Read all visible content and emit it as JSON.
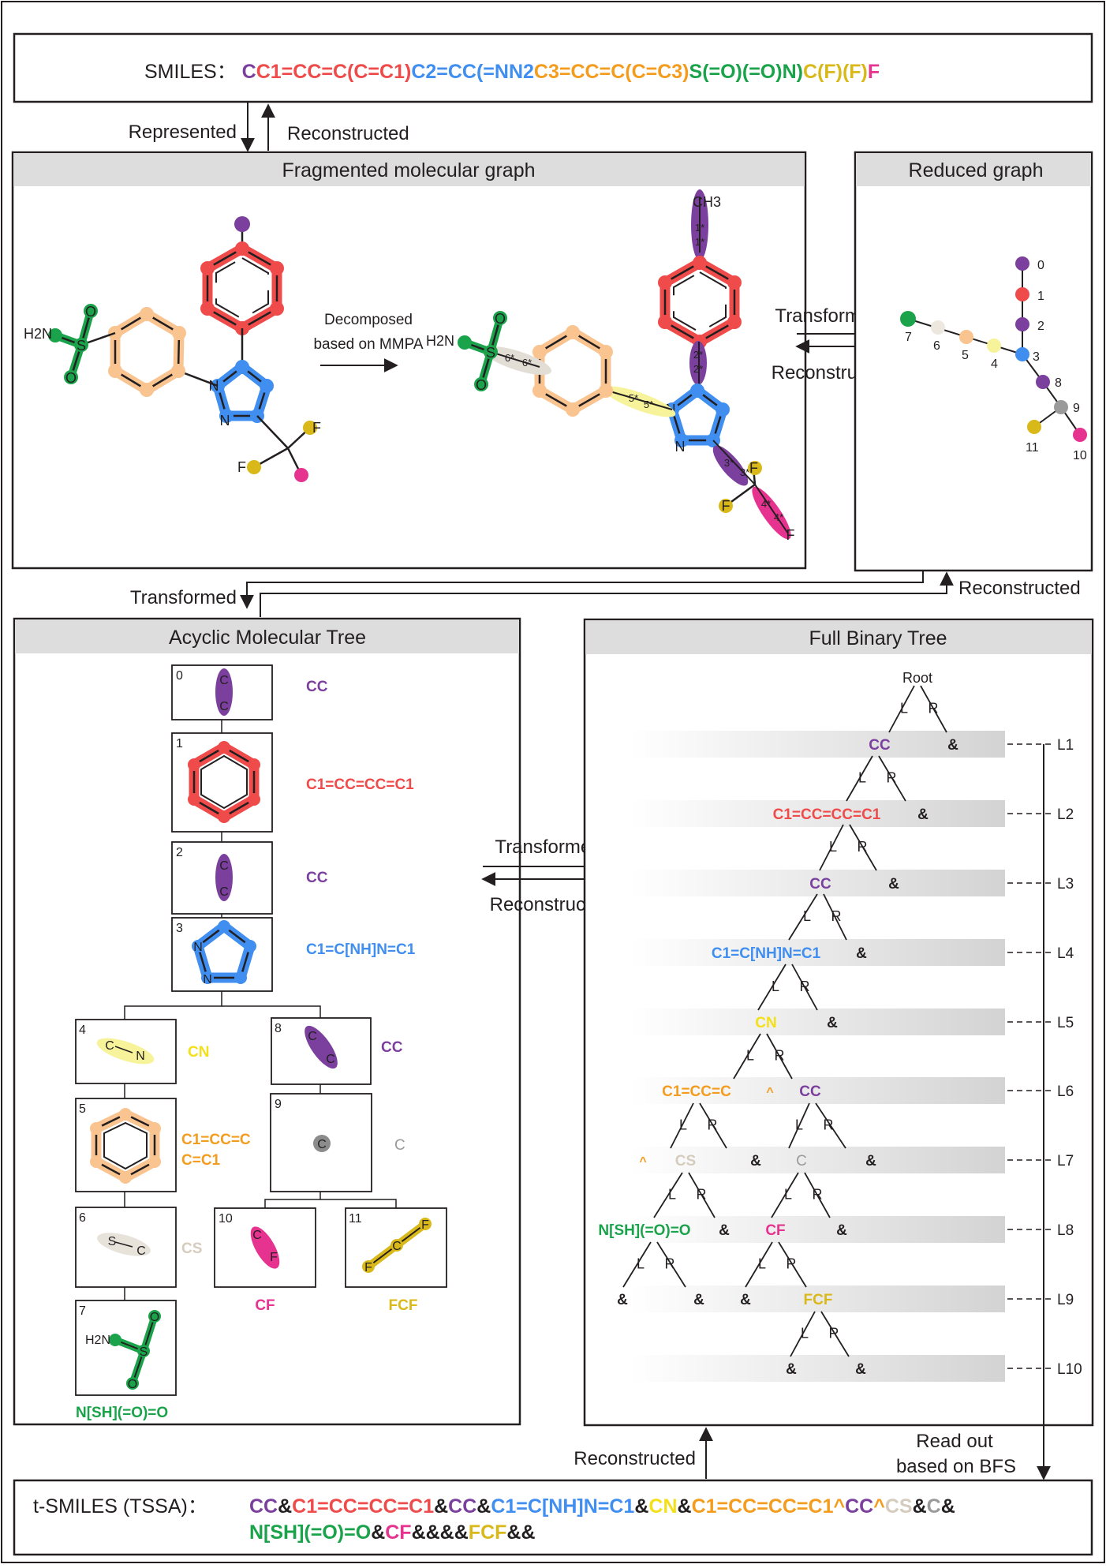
{
  "smiles": {
    "label": "SMILES：",
    "parts": [
      {
        "text": "C",
        "color": "#7b3f9e"
      },
      {
        "text": "C1=CC=C(C=C1)",
        "color": "#ef4b4b"
      },
      {
        "text": "C2=CC(=NN2",
        "color": "#3f8ef0"
      },
      {
        "text": "C3=CC=C(C=C3)",
        "color": "#f39c1e"
      },
      {
        "text": "S(=O)(=O)N)",
        "color": "#1aa34a"
      },
      {
        "text": "C(F)(F)",
        "color": "#d9b91a"
      },
      {
        "text": "F",
        "color": "#e6338f"
      }
    ]
  },
  "arrows": {
    "represented": "Represented",
    "reconstructed": "Reconstructed",
    "transformed": "Transformed",
    "read_out_line1": "Read out",
    "read_out_line2": "based on BFS"
  },
  "panels": {
    "fragmented": "Fragmented molecular graph",
    "reduced": "Reduced graph",
    "acyclic": "Acyclic Molecular Tree",
    "binary": "Full Binary Tree"
  },
  "decomposed": {
    "line1": "Decomposed",
    "line2": "based on MMPA"
  },
  "atoms": {
    "h2n": "H2N",
    "s": "S",
    "o": "O",
    "n": "N",
    "f": "F",
    "c": "C",
    "ch3": "CH3",
    "cuts": [
      "1*",
      "1*",
      "2*",
      "2*",
      "3*",
      "3*",
      "4*",
      "4*",
      "5*",
      "5*",
      "6*",
      "6*"
    ]
  },
  "reduced_nodes": [
    "0",
    "1",
    "2",
    "3",
    "4",
    "5",
    "6",
    "7",
    "8",
    "9",
    "10",
    "11"
  ],
  "tree_nodes": [
    {
      "id": "0",
      "label": "CC",
      "color": "#7b3f9e"
    },
    {
      "id": "1",
      "label": "C1=CC=CC=C1",
      "color": "#ef4b4b"
    },
    {
      "id": "2",
      "label": "CC",
      "color": "#7b3f9e"
    },
    {
      "id": "3",
      "label": "C1=C[NH]N=C1",
      "color": "#3f8ef0"
    },
    {
      "id": "4",
      "label": "CN",
      "color": "#f3e01a"
    },
    {
      "id": "5",
      "label": "C1=CC=C",
      "label2": "C=C1",
      "color": "#f39c1e"
    },
    {
      "id": "6",
      "label": "CS",
      "color": "#d6ccbe"
    },
    {
      "id": "7",
      "label": "N[SH](=O)=O",
      "color": "#1aa34a"
    },
    {
      "id": "8",
      "label": "CC",
      "color": "#7b3f9e"
    },
    {
      "id": "9",
      "label": "C",
      "color": "#9a9a9a"
    },
    {
      "id": "10",
      "label": "CF",
      "color": "#e6338f"
    },
    {
      "id": "11",
      "label": "FCF",
      "color": "#d9b91a"
    }
  ],
  "binary_tree": {
    "root": "Root",
    "left": "L",
    "right": "R",
    "amp": "&",
    "caret": "^",
    "levels": [
      "L1",
      "L2",
      "L3",
      "L4",
      "L5",
      "L6",
      "L7",
      "L8",
      "L9",
      "L10"
    ]
  },
  "tsmiles": {
    "label": "t-SMILES (TSSA)：",
    "line1": [
      {
        "text": "CC",
        "color": "#7b3f9e"
      },
      {
        "text": "&",
        "color": "#231f20"
      },
      {
        "text": "C1=CC=CC=C1",
        "color": "#ef4b4b"
      },
      {
        "text": "&",
        "color": "#231f20"
      },
      {
        "text": "CC",
        "color": "#7b3f9e"
      },
      {
        "text": "&",
        "color": "#231f20"
      },
      {
        "text": "C1=C[NH]N=C1",
        "color": "#3f8ef0"
      },
      {
        "text": "&",
        "color": "#231f20"
      },
      {
        "text": "CN",
        "color": "#f3e01a"
      },
      {
        "text": "&",
        "color": "#231f20"
      },
      {
        "text": "C1=CC=CC=C1",
        "color": "#f39c1e"
      },
      {
        "text": "^",
        "color": "#f39c1e"
      },
      {
        "text": "CC",
        "color": "#7b3f9e"
      },
      {
        "text": "^",
        "color": "#f39c1e"
      },
      {
        "text": "CS",
        "color": "#d6ccbe"
      },
      {
        "text": "&",
        "color": "#231f20"
      },
      {
        "text": "C",
        "color": "#9a9a9a"
      },
      {
        "text": "&",
        "color": "#231f20"
      }
    ],
    "line2": [
      {
        "text": "N[SH](=O)=O",
        "color": "#1aa34a"
      },
      {
        "text": "&",
        "color": "#231f20"
      },
      {
        "text": "CF",
        "color": "#e6338f"
      },
      {
        "text": "&&&&",
        "color": "#231f20"
      },
      {
        "text": "FCF",
        "color": "#d9b91a"
      },
      {
        "text": "&&",
        "color": "#231f20"
      }
    ]
  }
}
